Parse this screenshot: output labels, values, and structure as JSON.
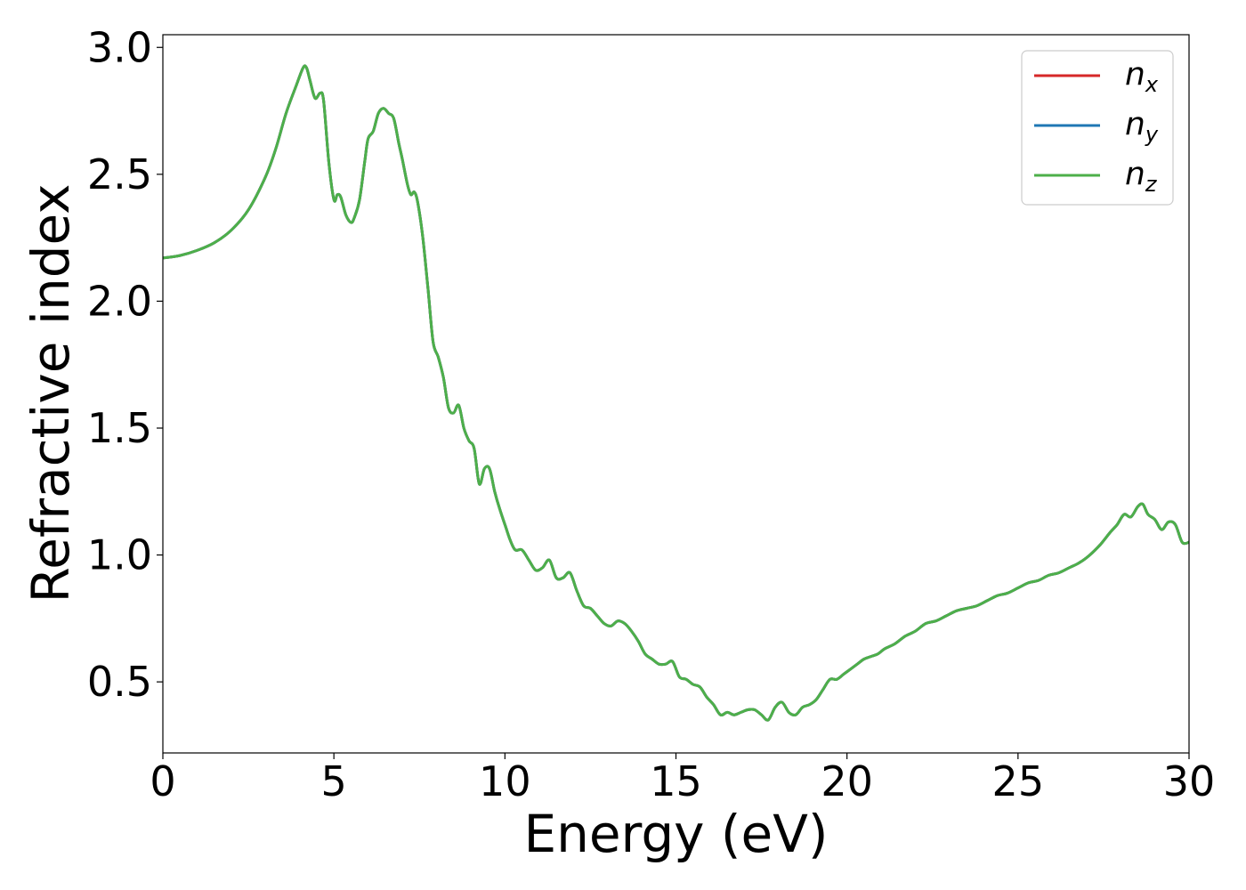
{
  "chart_data": {
    "type": "line",
    "title": "",
    "xlabel": "Energy (eV)",
    "ylabel": "Refractive index",
    "xlim": [
      0,
      30
    ],
    "ylim": [
      0.22,
      3.05
    ],
    "xticks": [
      0,
      5,
      10,
      15,
      20,
      25,
      30
    ],
    "xtick_labels": [
      "0",
      "5",
      "10",
      "15",
      "20",
      "25",
      "30"
    ],
    "yticks": [
      0.5,
      1.0,
      1.5,
      2.0,
      2.5,
      3.0
    ],
    "ytick_labels": [
      "0.5",
      "1.0",
      "1.5",
      "2.0",
      "2.5",
      "3.0"
    ],
    "grid": false,
    "legend_position": "top-right",
    "series": [
      {
        "name": "n_x",
        "label_main": "n",
        "label_sub": "x",
        "color": "#d62728",
        "x": [
          0,
          0.5,
          1.0,
          1.5,
          2.0,
          2.5,
          3.0,
          3.3,
          3.6,
          3.9,
          4.1,
          4.2,
          4.3,
          4.45,
          4.6,
          4.7,
          4.85,
          5.0,
          5.1,
          5.2,
          5.35,
          5.5,
          5.6,
          5.75,
          5.9,
          6.0,
          6.15,
          6.3,
          6.45,
          6.6,
          6.75,
          6.9,
          7.0,
          7.15,
          7.25,
          7.35,
          7.45,
          7.6,
          7.75,
          7.9,
          8.05,
          8.2,
          8.35,
          8.5,
          8.65,
          8.8,
          8.95,
          9.1,
          9.25,
          9.4,
          9.55,
          9.7,
          9.85,
          10.0,
          10.15,
          10.3,
          10.5,
          10.7,
          10.9,
          11.1,
          11.3,
          11.5,
          11.7,
          11.9,
          12.1,
          12.3,
          12.5,
          12.7,
          12.9,
          13.1,
          13.3,
          13.5,
          13.7,
          13.9,
          14.1,
          14.3,
          14.5,
          14.7,
          14.9,
          15.1,
          15.3,
          15.5,
          15.7,
          15.9,
          16.1,
          16.3,
          16.5,
          16.7,
          16.9,
          17.1,
          17.3,
          17.5,
          17.7,
          17.9,
          18.1,
          18.3,
          18.5,
          18.7,
          18.9,
          19.1,
          19.3,
          19.5,
          19.7,
          19.9,
          20.1,
          20.3,
          20.5,
          20.7,
          20.9,
          21.1,
          21.4,
          21.7,
          22.0,
          22.3,
          22.6,
          22.9,
          23.2,
          23.5,
          23.8,
          24.1,
          24.4,
          24.7,
          25.0,
          25.3,
          25.6,
          25.9,
          26.2,
          26.5,
          26.8,
          27.1,
          27.4,
          27.7,
          27.9,
          28.1,
          28.3,
          28.5,
          28.65,
          28.8,
          29.0,
          29.2,
          29.4,
          29.6,
          29.8,
          30.0
        ],
        "y": [
          2.17,
          2.18,
          2.2,
          2.23,
          2.28,
          2.36,
          2.49,
          2.6,
          2.74,
          2.85,
          2.92,
          2.92,
          2.87,
          2.8,
          2.82,
          2.79,
          2.55,
          2.4,
          2.42,
          2.41,
          2.34,
          2.31,
          2.33,
          2.4,
          2.55,
          2.64,
          2.67,
          2.74,
          2.76,
          2.74,
          2.72,
          2.62,
          2.56,
          2.46,
          2.42,
          2.43,
          2.39,
          2.25,
          2.05,
          1.84,
          1.78,
          1.7,
          1.58,
          1.56,
          1.59,
          1.5,
          1.45,
          1.42,
          1.28,
          1.34,
          1.34,
          1.25,
          1.18,
          1.12,
          1.06,
          1.02,
          1.02,
          0.98,
          0.94,
          0.95,
          0.98,
          0.91,
          0.91,
          0.93,
          0.86,
          0.8,
          0.79,
          0.76,
          0.73,
          0.72,
          0.74,
          0.73,
          0.7,
          0.66,
          0.61,
          0.59,
          0.57,
          0.57,
          0.58,
          0.52,
          0.51,
          0.49,
          0.48,
          0.44,
          0.41,
          0.37,
          0.38,
          0.37,
          0.38,
          0.39,
          0.39,
          0.37,
          0.35,
          0.4,
          0.42,
          0.38,
          0.37,
          0.4,
          0.41,
          0.43,
          0.47,
          0.51,
          0.51,
          0.53,
          0.55,
          0.57,
          0.59,
          0.6,
          0.61,
          0.63,
          0.65,
          0.68,
          0.7,
          0.73,
          0.74,
          0.76,
          0.78,
          0.79,
          0.8,
          0.82,
          0.84,
          0.85,
          0.87,
          0.89,
          0.9,
          0.92,
          0.93,
          0.95,
          0.97,
          1.0,
          1.04,
          1.09,
          1.12,
          1.16,
          1.15,
          1.19,
          1.2,
          1.16,
          1.14,
          1.1,
          1.13,
          1.12,
          1.05,
          1.05
        ]
      },
      {
        "name": "n_y",
        "label_main": "n",
        "label_sub": "y",
        "color": "#1f77b4",
        "same_as": 0
      },
      {
        "name": "n_z",
        "label_main": "n",
        "label_sub": "z",
        "color": "#4daf4a",
        "same_as": 0
      }
    ]
  }
}
